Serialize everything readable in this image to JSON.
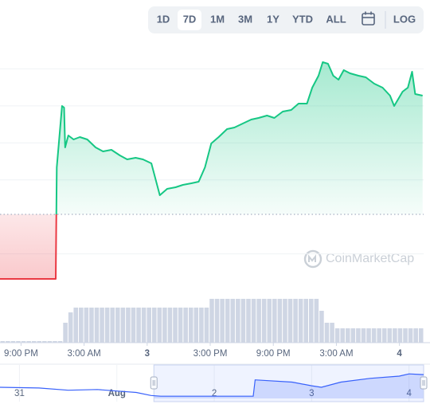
{
  "controls": {
    "ranges": [
      "1D",
      "7D",
      "1M",
      "3M",
      "1Y",
      "YTD",
      "ALL"
    ],
    "selected": "7D",
    "log": "LOG"
  },
  "watermark": "CoinMarketCap",
  "chart_data": {
    "type": "line",
    "x": [
      0,
      5.3,
      5.4,
      5.9,
      6.1,
      6.2,
      6.5,
      7.0,
      7.6,
      8.3,
      9.1,
      9.8,
      10.6,
      11.4,
      12.1,
      12.9,
      13.6,
      14.4,
      14.8,
      15.2,
      15.9,
      16.7,
      17.4,
      18.2,
      18.9,
      19.5,
      20.1,
      20.8,
      21.6,
      22.3,
      23.1,
      23.9,
      24.6,
      25.4,
      26.1,
      26.9,
      27.7,
      28.4,
      29.2,
      29.7,
      30.3,
      30.7,
      31.2,
      31.7,
      32.2,
      32.7,
      33.3,
      34.1,
      34.8,
      35.6,
      36.4,
      37.1,
      37.5,
      38.3,
      38.8,
      39.2,
      39.5,
      40.2
    ],
    "values": [
      15,
      15,
      155,
      232,
      230,
      180,
      195,
      190,
      193,
      190,
      180,
      175,
      177,
      170,
      165,
      167,
      165,
      160,
      140,
      120,
      128,
      130,
      133,
      135,
      137,
      155,
      185,
      193,
      203,
      205,
      210,
      215,
      217,
      220,
      217,
      225,
      227,
      235,
      235,
      255,
      270,
      287,
      285,
      270,
      265,
      277,
      273,
      270,
      268,
      260,
      255,
      245,
      232,
      250,
      255,
      275,
      247,
      245
    ],
    "baseline": 96,
    "color_up": "#16c784",
    "color_down": "#ea3943",
    "xlim": [
      0,
      40.3
    ],
    "ylim": [
      0,
      325
    ],
    "xticks": [
      {
        "value": 2,
        "label": "9:00 PM"
      },
      {
        "value": 8,
        "label": "3:00 AM"
      },
      {
        "value": 14,
        "label": "3",
        "bold": true
      },
      {
        "value": 20,
        "label": "3:00 PM"
      },
      {
        "value": 26,
        "label": "9:00 PM"
      },
      {
        "value": 32,
        "label": "3:00 AM"
      },
      {
        "value": 38,
        "label": "4",
        "bold": true
      }
    ],
    "grid": true,
    "volume": {
      "color": "#cfd6e4",
      "ylim": [
        0,
        60
      ],
      "values": [
        2,
        2,
        2,
        2,
        2,
        2,
        2,
        2,
        2,
        2,
        2,
        2,
        25,
        38,
        44,
        44,
        44,
        44,
        44,
        44,
        44,
        44,
        44,
        44,
        44,
        44,
        44,
        44,
        44,
        44,
        44,
        44,
        44,
        44,
        44,
        44,
        44,
        44,
        44,
        44,
        55,
        55,
        55,
        55,
        55,
        55,
        55,
        55,
        55,
        55,
        55,
        55,
        55,
        55,
        55,
        55,
        55,
        55,
        55,
        55,
        55,
        40,
        25,
        25,
        18,
        18,
        18,
        18,
        18,
        18,
        18,
        18,
        18,
        18,
        18,
        18,
        18,
        18,
        18,
        18,
        18
      ]
    },
    "navigator": {
      "color": "#3861fb",
      "x": [
        -0.2,
        0.2,
        0.5,
        0.8,
        1.0,
        1.2,
        1.35,
        1.45,
        2.0,
        2.4,
        2.42,
        2.8,
        3.0,
        3.1,
        3.3,
        3.6,
        3.9,
        4.0,
        4.15
      ],
      "values": [
        15,
        14,
        11,
        12,
        10,
        8,
        4,
        3,
        3,
        3,
        25,
        22,
        17,
        15,
        22,
        27,
        30,
        33,
        32
      ],
      "xlim": [
        -0.2,
        4.15
      ],
      "ylim": [
        0,
        45
      ],
      "selection": [
        1.38,
        4.15
      ],
      "xticks": [
        {
          "value": 0,
          "label": "31"
        },
        {
          "value": 1,
          "label": "Aug",
          "bold": true
        },
        {
          "value": 2,
          "label": "2"
        },
        {
          "value": 3,
          "label": "3"
        },
        {
          "value": 4,
          "label": "4"
        }
      ]
    }
  }
}
